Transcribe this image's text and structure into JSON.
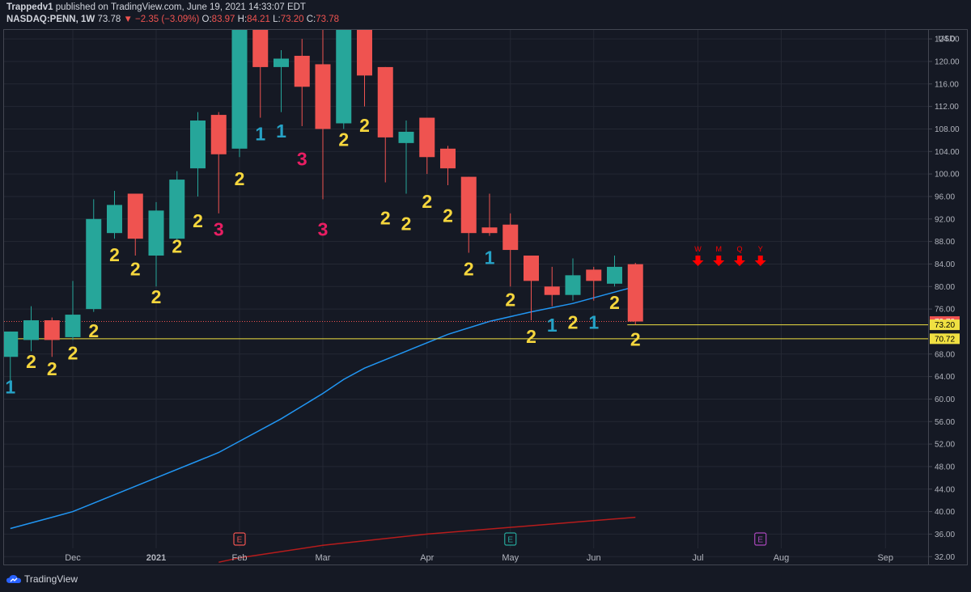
{
  "header": {
    "publisher": "Trappedv1",
    "published_text": "published on TradingView.com, June 19, 2021 14:33:07 EDT",
    "symbol": "NASDAQ:PENN, 1W",
    "last": "73.78",
    "change": "−2.35 (−3.09%)",
    "o_label": "O:",
    "o_value": "83.97",
    "h_label": "H:",
    "h_value": "84.21",
    "l_label": "L:",
    "l_value": "73.20",
    "c_label": "C:",
    "c_value": "73.78"
  },
  "footer": {
    "brand": "TradingView"
  },
  "chart_data": {
    "type": "candlestick",
    "currency": "USD",
    "ylim": [
      30.6,
      125.6
    ],
    "y_ticks": [
      "124.00",
      "120.00",
      "116.00",
      "112.00",
      "108.00",
      "104.00",
      "100.00",
      "96.00",
      "92.00",
      "88.00",
      "84.00",
      "80.00",
      "76.00",
      "68.00",
      "64.00",
      "60.00",
      "56.00",
      "52.00",
      "48.00",
      "44.00",
      "40.00",
      "36.00",
      "32.00"
    ],
    "x_ticks": [
      {
        "label": "Dec",
        "x": 0
      },
      {
        "label": "2021",
        "x": 4
      },
      {
        "label": "Feb",
        "x": 8
      },
      {
        "label": "Mar",
        "x": 12
      },
      {
        "label": "Apr",
        "x": 17
      },
      {
        "label": "May",
        "x": 21
      },
      {
        "label": "Jun",
        "x": 25
      },
      {
        "label": "Jul",
        "x": 30
      },
      {
        "label": "Aug",
        "x": 34
      },
      {
        "label": "Sep",
        "x": 39
      }
    ],
    "candles": [
      {
        "x": -3,
        "o": 67.5,
        "h": 72.0,
        "l": 63.0,
        "c": 72.0,
        "count": "1",
        "count_color": "cyan",
        "count_y": 61.0
      },
      {
        "x": -2,
        "o": 70.5,
        "h": 76.5,
        "l": 68.5,
        "c": 74.0,
        "count": "2",
        "count_color": "yellow",
        "count_y": 65.5
      },
      {
        "x": -1,
        "o": 74.0,
        "h": 74.5,
        "l": 67.5,
        "c": 70.5,
        "count": "2",
        "count_color": "yellow",
        "count_y": 64.2
      },
      {
        "x": 0,
        "o": 71.0,
        "h": 81.0,
        "l": 70.5,
        "c": 75.0,
        "count": "2",
        "count_color": "yellow",
        "count_y": 67.0
      },
      {
        "x": 1,
        "o": 76.0,
        "h": 95.5,
        "l": 75.5,
        "c": 92.0,
        "count": "2",
        "count_color": "yellow",
        "count_y": 71.0
      },
      {
        "x": 2,
        "o": 89.5,
        "h": 97.0,
        "l": 88.5,
        "c": 94.5,
        "count": "2",
        "count_color": "yellow",
        "count_y": 84.5
      },
      {
        "x": 3,
        "o": 96.5,
        "h": 96.5,
        "l": 85.5,
        "c": 88.5,
        "count": "2",
        "count_color": "yellow",
        "count_y": 82.0
      },
      {
        "x": 4,
        "o": 85.5,
        "h": 95.0,
        "l": 80.0,
        "c": 93.5,
        "count": "2",
        "count_color": "yellow",
        "count_y": 77.0
      },
      {
        "x": 5,
        "o": 88.5,
        "h": 100.5,
        "l": 88.0,
        "c": 99.0,
        "count": "2",
        "count_color": "yellow",
        "count_y": 86.0
      },
      {
        "x": 6,
        "o": 101.0,
        "h": 111.0,
        "l": 96.0,
        "c": 109.5,
        "count": "2",
        "count_color": "yellow",
        "count_y": 90.5
      },
      {
        "x": 7,
        "o": 110.5,
        "h": 111.0,
        "l": 93.0,
        "c": 103.5,
        "count": "3",
        "count_color": "pink",
        "count_y": 89.0
      },
      {
        "x": 8,
        "o": 104.5,
        "h": 127.0,
        "l": 103.0,
        "c": 127.0,
        "count": "2",
        "count_color": "yellow",
        "count_y": 98.0
      },
      {
        "x": 9,
        "o": 126.0,
        "h": 127.0,
        "l": 110.0,
        "c": 119.0,
        "count": "1",
        "count_color": "cyan",
        "count_y": 106.0
      },
      {
        "x": 10,
        "o": 119.0,
        "h": 122.0,
        "l": 111.0,
        "c": 120.5,
        "count": "1",
        "count_color": "cyan",
        "count_y": 106.5
      },
      {
        "x": 11,
        "o": 121.0,
        "h": 124.0,
        "l": 108.5,
        "c": 115.5,
        "count": "3",
        "count_color": "pink",
        "count_y": 101.5
      },
      {
        "x": 12,
        "o": 119.5,
        "h": 127.0,
        "l": 95.5,
        "c": 108.0,
        "count": "3",
        "count_color": "pink",
        "count_y": 89.0
      },
      {
        "x": 13,
        "o": 109.0,
        "h": 127.0,
        "l": 108.0,
        "c": 127.0,
        "count": "2",
        "count_color": "yellow",
        "count_y": 105.0
      },
      {
        "x": 14,
        "o": 127.0,
        "h": 127.0,
        "l": 112.0,
        "c": 117.5,
        "count": "2",
        "count_color": "yellow",
        "count_y": 107.5
      },
      {
        "x": 15,
        "o": 119.0,
        "h": 119.0,
        "l": 98.5,
        "c": 106.5,
        "count": "2",
        "count_color": "yellow",
        "count_y": 91.0
      },
      {
        "x": 16,
        "o": 105.5,
        "h": 109.5,
        "l": 96.5,
        "c": 107.5,
        "count": "2",
        "count_color": "yellow",
        "count_y": 90.0
      },
      {
        "x": 17,
        "o": 110.0,
        "h": 110.0,
        "l": 100.0,
        "c": 103.0,
        "count": "2",
        "count_color": "yellow",
        "count_y": 94.0
      },
      {
        "x": 18,
        "o": 104.5,
        "h": 105.0,
        "l": 98.0,
        "c": 101.0,
        "count": "2",
        "count_color": "yellow",
        "count_y": 91.5
      },
      {
        "x": 19,
        "o": 99.5,
        "h": 99.5,
        "l": 86.0,
        "c": 89.5,
        "count": "2",
        "count_color": "yellow",
        "count_y": 82.0
      },
      {
        "x": 20,
        "o": 90.5,
        "h": 96.5,
        "l": 89.0,
        "c": 89.5,
        "count": "1",
        "count_color": "cyan",
        "count_y": 84.0
      },
      {
        "x": 21,
        "o": 91.0,
        "h": 93.0,
        "l": 80.0,
        "c": 86.5,
        "count": "2",
        "count_color": "yellow",
        "count_y": 76.5
      },
      {
        "x": 22,
        "o": 85.5,
        "h": 85.5,
        "l": 74.0,
        "c": 81.0,
        "count": "2",
        "count_color": "yellow",
        "count_y": 70.0
      },
      {
        "x": 23,
        "o": 80.0,
        "h": 83.5,
        "l": 76.5,
        "c": 78.5,
        "count": "1",
        "count_color": "cyan",
        "count_y": 72.0
      },
      {
        "x": 24,
        "o": 78.5,
        "h": 85.0,
        "l": 77.5,
        "c": 82.0,
        "count": "2",
        "count_color": "yellow",
        "count_y": 72.5
      },
      {
        "x": 25,
        "o": 83.0,
        "h": 83.5,
        "l": 77.5,
        "c": 81.0,
        "count": "1",
        "count_color": "cyan",
        "count_y": 72.5
      },
      {
        "x": 26,
        "o": 80.5,
        "h": 85.5,
        "l": 80.0,
        "c": 83.5,
        "count": "2",
        "count_color": "yellow",
        "count_y": 76.0
      },
      {
        "x": 27,
        "o": 83.97,
        "h": 84.21,
        "l": 73.2,
        "c": 73.78,
        "count": "2",
        "count_color": "yellow",
        "count_y": 69.5
      }
    ],
    "ma_blue": [
      {
        "x": -3,
        "y": 37.0
      },
      {
        "x": -1,
        "y": 39.0
      },
      {
        "x": 0,
        "y": 40.0
      },
      {
        "x": 2,
        "y": 43.0
      },
      {
        "x": 4,
        "y": 46.0
      },
      {
        "x": 6,
        "y": 49.0
      },
      {
        "x": 7,
        "y": 50.5
      },
      {
        "x": 8,
        "y": 52.5
      },
      {
        "x": 10,
        "y": 56.5
      },
      {
        "x": 12,
        "y": 61.0
      },
      {
        "x": 13,
        "y": 63.5
      },
      {
        "x": 14,
        "y": 65.5
      },
      {
        "x": 16,
        "y": 68.5
      },
      {
        "x": 18,
        "y": 71.5
      },
      {
        "x": 20,
        "y": 73.8
      },
      {
        "x": 22,
        "y": 75.5
      },
      {
        "x": 24,
        "y": 77.0
      },
      {
        "x": 26,
        "y": 79.0
      },
      {
        "x": 27,
        "y": 80.0
      }
    ],
    "ma_red": [
      {
        "x": 7,
        "y": 31.0
      },
      {
        "x": 8,
        "y": 31.8
      },
      {
        "x": 12,
        "y": 34.0
      },
      {
        "x": 17,
        "y": 36.0
      },
      {
        "x": 22,
        "y": 37.5
      },
      {
        "x": 27,
        "y": 39.0
      }
    ],
    "hlines": [
      {
        "value": 73.78,
        "style": "dotted",
        "color": "#ef5350",
        "x_start": -3,
        "x_end": 27
      },
      {
        "value": 73.2,
        "style": "solid",
        "color": "#f0e042",
        "x_start": 27,
        "x_end": 43
      },
      {
        "value": 70.72,
        "style": "solid",
        "color": "#f0e042",
        "x_start": -3,
        "x_end": 43
      }
    ],
    "price_labels": [
      {
        "text": "73.78",
        "value": 73.78,
        "bg": "#ef5350",
        "fg": "#ffffff"
      },
      {
        "text": "73.20",
        "value": 73.2,
        "bg": "#f0e042",
        "fg": "#000000"
      },
      {
        "text": "70.72",
        "value": 70.72,
        "bg": "#f0e042",
        "fg": "#000000"
      }
    ],
    "signals": [
      {
        "label": "W",
        "x": 30
      },
      {
        "label": "M",
        "x": 31
      },
      {
        "label": "Q",
        "x": 32
      },
      {
        "label": "Y",
        "x": 33
      }
    ],
    "signal_y": 84.5,
    "earnings": [
      {
        "label": "E",
        "x": 8,
        "color": "#ef5350"
      },
      {
        "label": "E",
        "x": 21,
        "color": "#26a69a"
      },
      {
        "label": "E",
        "x": 33,
        "color": "#ab47bc"
      }
    ],
    "colors": {
      "up": "#26a69a",
      "down": "#ef5350",
      "yellow": "#f5d63d",
      "cyan": "#26a2c6",
      "pink": "#e91e63",
      "ma_blue": "#2196f3",
      "ma_red": "#b71c1c",
      "signal": "#ff0000"
    }
  }
}
